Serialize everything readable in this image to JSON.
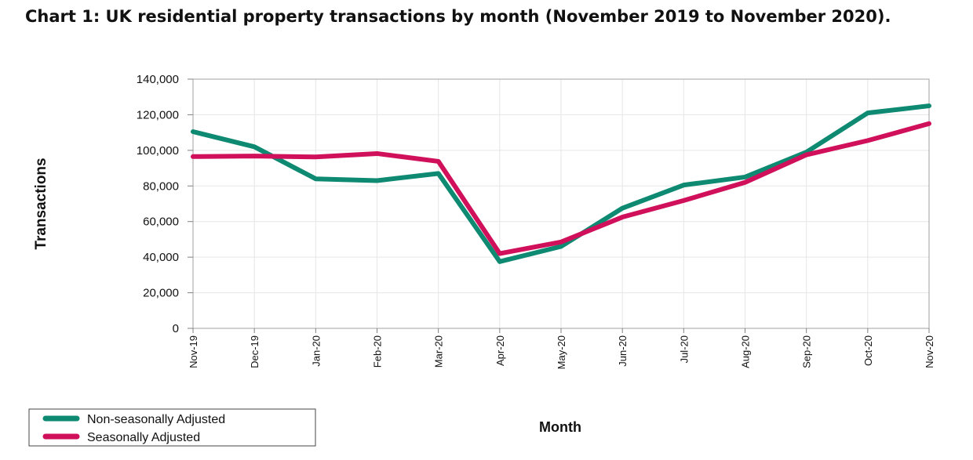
{
  "chart_data": {
    "type": "line",
    "title": "Chart 1: UK residential property transactions by month (November 2019 to November 2020).",
    "xlabel": "Month",
    "ylabel": "Transactions",
    "categories": [
      "Nov-19",
      "Dec-19",
      "Jan-20",
      "Feb-20",
      "Mar-20",
      "Apr-20",
      "May-20",
      "Jun-20",
      "Jul-20",
      "Aug-20",
      "Sep-20",
      "Oct-20",
      "Nov-20"
    ],
    "ylim": [
      0,
      140000
    ],
    "yticks": [
      0,
      20000,
      40000,
      60000,
      80000,
      100000,
      120000,
      140000
    ],
    "ytick_labels": [
      "0",
      "20,000",
      "40,000",
      "60,000",
      "80,000",
      "100,000",
      "120,000",
      "140,000"
    ],
    "grid": true,
    "legend_position": "bottom-left",
    "series": [
      {
        "name": "Non-seasonally Adjusted",
        "color": "#0e8a72",
        "values": [
          110500,
          102000,
          84000,
          83000,
          87000,
          37500,
          46000,
          67500,
          80500,
          85000,
          99000,
          121000,
          125000
        ]
      },
      {
        "name": "Seasonally Adjusted",
        "color": "#d0105a",
        "values": [
          96500,
          96800,
          96300,
          98200,
          93800,
          42000,
          48500,
          62500,
          71800,
          82000,
          97500,
          105500,
          115000
        ]
      }
    ]
  }
}
